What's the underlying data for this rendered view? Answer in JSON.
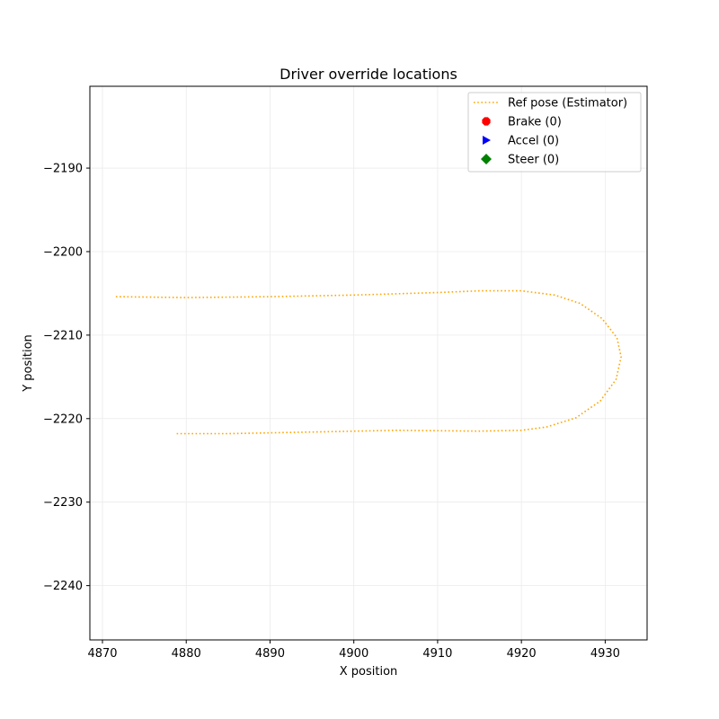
{
  "chart_data": {
    "type": "line",
    "title": "Driver override locations",
    "xlabel": "X position",
    "ylabel": "Y position",
    "xlim": [
      4868.5,
      4935
    ],
    "ylim": [
      -2246.5,
      -2180.2
    ],
    "xticks": [
      4870,
      4880,
      4890,
      4900,
      4910,
      4920,
      4930
    ],
    "yticks": [
      -2190,
      -2200,
      -2210,
      -2220,
      -2230,
      -2240
    ],
    "xtick_labels": [
      "4870",
      "4880",
      "4890",
      "4900",
      "4910",
      "4920",
      "4930"
    ],
    "ytick_labels": [
      "−2190",
      "−2200",
      "−2210",
      "−2220",
      "−2230",
      "−2240"
    ],
    "grid": true,
    "legend_position": "upper right",
    "legend": [
      {
        "label": "Ref pose (Estimator)",
        "marker": "dotted-line",
        "color": "#ffa500"
      },
      {
        "label": "Brake (0)",
        "marker": "octagon",
        "color": "#ff0000"
      },
      {
        "label": "Accel (0)",
        "marker": "triangle-right",
        "color": "#0000ff"
      },
      {
        "label": "Steer (0)",
        "marker": "diamond",
        "color": "#008000"
      }
    ],
    "series": [
      {
        "name": "Ref pose (Estimator)",
        "color": "#ffa500",
        "style": "dotted",
        "x": [
          4871.6,
          4880,
          4890,
          4900,
          4910,
          4915,
          4920,
          4924,
          4927,
          4929.6,
          4931.4,
          4931.9,
          4931.3,
          4929.4,
          4926.5,
          4923,
          4920,
          4915,
          4905,
          4895,
          4885,
          4878.8
        ],
        "y": [
          -2205.4,
          -2205.5,
          -2205.4,
          -2205.2,
          -2204.9,
          -2204.7,
          -2204.7,
          -2205.2,
          -2206.2,
          -2208.0,
          -2210.3,
          -2212.6,
          -2215.3,
          -2217.9,
          -2219.9,
          -2221.0,
          -2221.4,
          -2221.5,
          -2221.4,
          -2221.6,
          -2221.8,
          -2221.8
        ]
      },
      {
        "name": "Brake (0)",
        "color": "#ff0000",
        "x": [],
        "y": []
      },
      {
        "name": "Accel (0)",
        "color": "#0000ff",
        "x": [],
        "y": []
      },
      {
        "name": "Steer (0)",
        "color": "#008000",
        "x": [],
        "y": []
      }
    ]
  }
}
